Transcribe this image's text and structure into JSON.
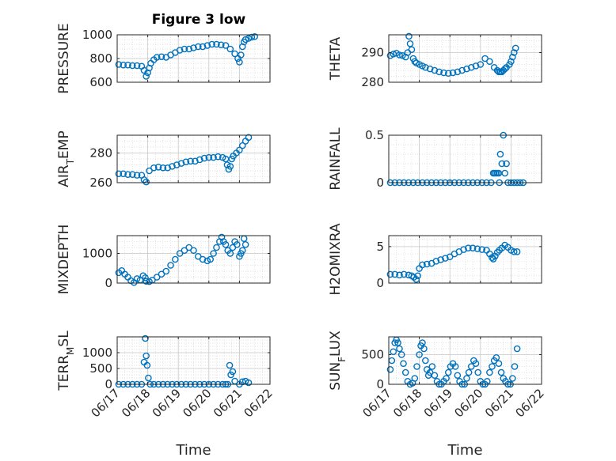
{
  "figure": {
    "title": "Figure 3 low",
    "marker_color": "#0072BD",
    "axis_color": "#262626",
    "grid_color": "#d9d9d9"
  },
  "chart_data": [
    {
      "type": "scatter",
      "ylabel": "PRESSURE",
      "xlabel": "",
      "ylim": [
        600,
        1000
      ],
      "yticks": [
        600,
        800,
        1000
      ],
      "ytick_labels": [
        "600",
        "800",
        "1000"
      ],
      "xlim": [
        17,
        22
      ],
      "xticks": [
        17,
        18,
        19,
        20,
        21,
        22
      ],
      "xtick_labels": [],
      "grid": true,
      "minor_grid": true,
      "x": [
        17.05,
        17.2,
        17.35,
        17.5,
        17.65,
        17.8,
        17.88,
        17.95,
        18.0,
        18.05,
        18.1,
        18.2,
        18.3,
        18.45,
        18.6,
        18.75,
        18.9,
        19.05,
        19.2,
        19.35,
        19.5,
        19.65,
        19.8,
        19.95,
        20.1,
        20.25,
        20.4,
        20.55,
        20.7,
        20.85,
        20.95,
        21.0,
        21.05,
        21.1,
        21.15,
        21.2,
        21.3,
        21.4,
        21.5
      ],
      "y": [
        750,
        745,
        745,
        740,
        740,
        735,
        700,
        650,
        680,
        720,
        760,
        790,
        810,
        815,
        810,
        830,
        850,
        870,
        880,
        880,
        890,
        900,
        900,
        910,
        920,
        920,
        915,
        910,
        880,
        840,
        800,
        770,
        830,
        900,
        940,
        960,
        970,
        980,
        985
      ]
    },
    {
      "type": "scatter",
      "ylabel": "THETA",
      "xlabel": "",
      "ylim": [
        280,
        296
      ],
      "yticks": [
        280,
        290
      ],
      "ytick_labels": [
        "280",
        "290"
      ],
      "xlim": [
        17,
        22
      ],
      "xticks": [
        17,
        18,
        19,
        20,
        21,
        22
      ],
      "xtick_labels": [],
      "grid": true,
      "minor_grid": true,
      "x": [
        17.05,
        17.15,
        17.25,
        17.35,
        17.45,
        17.55,
        17.62,
        17.66,
        17.7,
        17.75,
        17.8,
        17.85,
        17.9,
        18.0,
        18.1,
        18.2,
        18.35,
        18.5,
        18.65,
        18.8,
        18.95,
        19.1,
        19.25,
        19.4,
        19.55,
        19.7,
        19.85,
        20.0,
        20.15,
        20.3,
        20.45,
        20.55,
        20.6,
        20.65,
        20.7,
        20.75,
        20.8,
        20.85,
        20.95,
        21.0,
        21.05,
        21.1,
        21.15
      ],
      "y": [
        289,
        289.5,
        289.8,
        289.2,
        289,
        288.5,
        290,
        295.5,
        293,
        291,
        288,
        287,
        286.5,
        286,
        285.5,
        285,
        284.5,
        284,
        283.5,
        283.2,
        283,
        283.2,
        283.5,
        284,
        284.5,
        285,
        285.5,
        286,
        288,
        287,
        285,
        284,
        283.5,
        283.5,
        283.5,
        284,
        284.5,
        285,
        286,
        287,
        288.5,
        290,
        291.5
      ]
    },
    {
      "type": "scatter",
      "ylabel": "AIR_TEMP",
      "xlabel": "",
      "ylim": [
        260,
        292
      ],
      "yticks": [
        260,
        280
      ],
      "ytick_labels": [
        "260",
        "280"
      ],
      "xlim": [
        17,
        22
      ],
      "xticks": [
        17,
        18,
        19,
        20,
        21,
        22
      ],
      "xtick_labels": [],
      "grid": true,
      "minor_grid": true,
      "x": [
        17.05,
        17.2,
        17.35,
        17.5,
        17.65,
        17.8,
        17.88,
        17.95,
        18.05,
        18.2,
        18.35,
        18.5,
        18.65,
        18.8,
        18.95,
        19.1,
        19.25,
        19.4,
        19.55,
        19.7,
        19.85,
        20.0,
        20.15,
        20.3,
        20.45,
        20.55,
        20.6,
        20.65,
        20.7,
        20.75,
        20.8,
        20.9,
        21.0,
        21.1,
        21.2,
        21.3
      ],
      "y": [
        266,
        266,
        265.5,
        265.5,
        265,
        265,
        262,
        260.5,
        268,
        270,
        270.5,
        270,
        270,
        271,
        272,
        273,
        274,
        274.5,
        274.5,
        275.5,
        276.5,
        277,
        277,
        277.5,
        277,
        276,
        272,
        269,
        271,
        276,
        278,
        280,
        282,
        285,
        288,
        290.5
      ]
    },
    {
      "type": "scatter",
      "ylabel": "RAINFALL",
      "xlabel": "",
      "ylim": [
        0,
        0.5
      ],
      "yticks": [
        0,
        0.5
      ],
      "ytick_labels": [
        "0",
        "0.5"
      ],
      "xlim": [
        17,
        22
      ],
      "xticks": [
        17,
        18,
        19,
        20,
        21,
        22
      ],
      "xtick_labels": [],
      "grid": true,
      "minor_grid": true,
      "x": [
        17.05,
        17.2,
        17.35,
        17.5,
        17.65,
        17.8,
        17.95,
        18.1,
        18.25,
        18.4,
        18.55,
        18.7,
        18.85,
        19.0,
        19.15,
        19.3,
        19.45,
        19.6,
        19.75,
        19.9,
        20.05,
        20.2,
        20.35,
        20.42,
        20.45,
        20.5,
        20.55,
        20.6,
        20.62,
        20.65,
        20.7,
        20.75,
        20.8,
        20.85,
        20.9,
        21.0,
        21.1,
        21.2,
        21.3,
        21.4
      ],
      "y": [
        0,
        0,
        0,
        0,
        0,
        0,
        0,
        0,
        0,
        0,
        0,
        0,
        0,
        0,
        0,
        0,
        0,
        0,
        0,
        0,
        0,
        0,
        0,
        0.1,
        0.1,
        0.1,
        0.1,
        0.1,
        0,
        0.3,
        0.2,
        0.5,
        0.1,
        0.2,
        0,
        0,
        0,
        0,
        0,
        0
      ]
    },
    {
      "type": "scatter",
      "ylabel": "MIXDEPTH",
      "xlabel": "",
      "ylim": [
        0,
        1600
      ],
      "yticks": [
        0,
        1000
      ],
      "ytick_labels": [
        "0",
        "1000"
      ],
      "xlim": [
        17,
        22
      ],
      "xticks": [
        17,
        18,
        19,
        20,
        21,
        22
      ],
      "xtick_labels": [],
      "grid": true,
      "minor_grid": true,
      "x": [
        17.05,
        17.15,
        17.25,
        17.35,
        17.45,
        17.55,
        17.65,
        17.75,
        17.85,
        17.92,
        17.95,
        18.05,
        18.15,
        18.3,
        18.45,
        18.6,
        18.75,
        18.9,
        19.05,
        19.2,
        19.35,
        19.5,
        19.65,
        19.8,
        19.95,
        20.05,
        20.15,
        20.25,
        20.35,
        20.42,
        20.48,
        20.55,
        20.62,
        20.7,
        20.78,
        20.85,
        20.92,
        21.0,
        21.05,
        21.1,
        21.15,
        21.2
      ],
      "y": [
        350,
        420,
        300,
        200,
        80,
        20,
        150,
        100,
        250,
        180,
        60,
        50,
        100,
        200,
        300,
        400,
        600,
        800,
        1000,
        1100,
        1200,
        1100,
        900,
        800,
        750,
        800,
        1000,
        1200,
        1400,
        1550,
        1400,
        1300,
        1100,
        1000,
        1200,
        1400,
        1300,
        900,
        1000,
        1100,
        1500,
        1300
      ]
    },
    {
      "type": "scatter",
      "ylabel": "H2OMIXRA",
      "xlabel": "",
      "ylim": [
        0,
        6.5
      ],
      "yticks": [
        0,
        5
      ],
      "ytick_labels": [
        "0",
        "5"
      ],
      "xlim": [
        17,
        22
      ],
      "xticks": [
        17,
        18,
        19,
        20,
        21,
        22
      ],
      "xtick_labels": [],
      "grid": true,
      "minor_grid": true,
      "x": [
        17.05,
        17.2,
        17.35,
        17.5,
        17.65,
        17.75,
        17.82,
        17.9,
        17.95,
        18.0,
        18.1,
        18.25,
        18.4,
        18.55,
        18.7,
        18.85,
        19.0,
        19.15,
        19.3,
        19.45,
        19.6,
        19.75,
        19.9,
        20.05,
        20.2,
        20.3,
        20.38,
        20.42,
        20.48,
        20.55,
        20.62,
        20.7,
        20.8,
        20.9,
        21.0,
        21.1,
        21.2
      ],
      "y": [
        1.2,
        1.2,
        1.1,
        1.2,
        1.1,
        1.0,
        0.8,
        0.5,
        1.0,
        2.0,
        2.5,
        2.6,
        2.7,
        3.0,
        3.2,
        3.4,
        3.6,
        4.0,
        4.3,
        4.6,
        4.8,
        4.8,
        4.7,
        4.6,
        4.5,
        4.0,
        3.5,
        3.3,
        3.7,
        4.2,
        4.5,
        4.8,
        5.2,
        4.9,
        4.5,
        4.3,
        4.3
      ]
    },
    {
      "type": "scatter",
      "ylabel": "TERR_MSL",
      "xlabel": "Time",
      "ylim": [
        0,
        1500
      ],
      "yticks": [
        0,
        500,
        1000
      ],
      "ytick_labels": [
        "0",
        "500",
        "1000"
      ],
      "xlim": [
        17,
        22
      ],
      "xticks": [
        17,
        18,
        19,
        20,
        21,
        22
      ],
      "xtick_labels": [
        "06/17",
        "06/18",
        "06/19",
        "06/20",
        "06/21",
        "06/22"
      ],
      "grid": true,
      "minor_grid": true,
      "x": [
        17.05,
        17.2,
        17.35,
        17.5,
        17.65,
        17.8,
        17.88,
        17.92,
        17.95,
        17.98,
        18.02,
        18.08,
        18.2,
        18.35,
        18.5,
        18.65,
        18.8,
        18.95,
        19.1,
        19.25,
        19.4,
        19.55,
        19.7,
        19.85,
        20.0,
        20.15,
        20.3,
        20.45,
        20.55,
        20.62,
        20.68,
        20.72,
        20.78,
        20.85,
        21.0,
        21.1,
        21.2,
        21.3
      ],
      "y": [
        0,
        0,
        0,
        0,
        0,
        0,
        700,
        1450,
        900,
        600,
        200,
        0,
        0,
        0,
        0,
        0,
        0,
        0,
        0,
        0,
        0,
        0,
        0,
        0,
        0,
        0,
        0,
        0,
        0,
        0,
        600,
        300,
        400,
        100,
        0,
        80,
        100,
        50
      ]
    },
    {
      "type": "scatter",
      "ylabel": "SUN_FLUX",
      "xlabel": "Time",
      "ylim": [
        0,
        800
      ],
      "yticks": [
        0,
        500
      ],
      "ytick_labels": [
        "0",
        "500"
      ],
      "xlim": [
        17,
        22
      ],
      "xticks": [
        17,
        18,
        19,
        20,
        21,
        22
      ],
      "xtick_labels": [
        "06/17",
        "06/18",
        "06/19",
        "06/20",
        "06/21",
        "06/22"
      ],
      "grid": true,
      "minor_grid": true,
      "x": [
        17.05,
        17.1,
        17.15,
        17.2,
        17.25,
        17.3,
        17.35,
        17.42,
        17.48,
        17.55,
        17.62,
        17.7,
        17.78,
        17.85,
        17.92,
        18.0,
        18.05,
        18.1,
        18.15,
        18.2,
        18.25,
        18.3,
        18.35,
        18.42,
        18.5,
        18.58,
        18.65,
        18.72,
        18.8,
        18.88,
        18.95,
        19.02,
        19.1,
        19.18,
        19.25,
        19.32,
        19.4,
        19.48,
        19.55,
        19.62,
        19.7,
        19.78,
        19.85,
        19.92,
        20.0,
        20.08,
        20.15,
        20.22,
        20.3,
        20.38,
        20.45,
        20.52,
        20.6,
        20.68,
        20.75,
        20.82,
        20.9,
        20.98,
        21.05,
        21.12,
        21.2
      ],
      "y": [
        250,
        400,
        550,
        700,
        750,
        700,
        600,
        500,
        350,
        200,
        50,
        0,
        20,
        100,
        300,
        500,
        650,
        700,
        600,
        400,
        250,
        150,
        200,
        300,
        150,
        50,
        0,
        0,
        50,
        100,
        200,
        300,
        350,
        300,
        150,
        50,
        0,
        0,
        100,
        200,
        300,
        400,
        350,
        200,
        50,
        0,
        0,
        50,
        200,
        300,
        400,
        450,
        350,
        200,
        100,
        50,
        0,
        0,
        100,
        300,
        600
      ]
    }
  ]
}
